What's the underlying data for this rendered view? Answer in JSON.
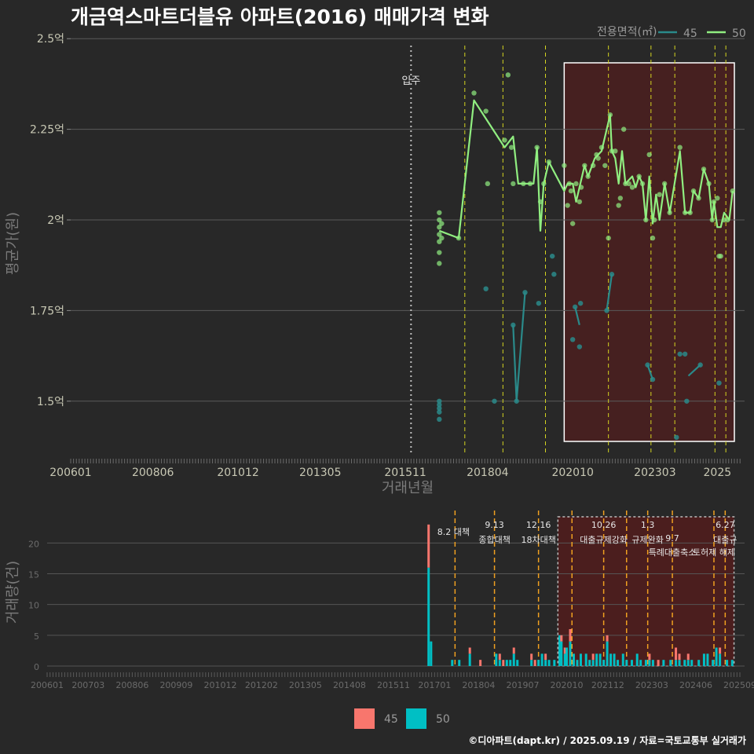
{
  "title": "개금역스마트더블유 아파트(2016) 매매가격 변화",
  "footer": "©디아파트(dapt.kr) / 2025.09.19 / 자료=국토교통부 실거래가",
  "colors": {
    "s45_line": "#2a8a8a",
    "s50_line": "#90ee80",
    "bar45": "#f8766d",
    "bar50": "#00bfc4",
    "accent_dash": "#e8c020",
    "highlight": "#5a1a1a"
  },
  "chart_data": [
    {
      "type": "line",
      "name": "price",
      "xlabel": "거래년월",
      "ylabel": "평균가(원)",
      "legend_title": "전용면적(㎡)",
      "legend_position": "top-right",
      "x_ticks": [
        "200601",
        "200806",
        "201012",
        "201305",
        "201511",
        "201804",
        "202010",
        "202303",
        "2025"
      ],
      "y_ticks": [
        {
          "v": 1.5,
          "label": "1.5억"
        },
        {
          "v": 1.75,
          "label": "1.75억"
        },
        {
          "v": 2.0,
          "label": "2억"
        },
        {
          "v": 2.25,
          "label": "2.25억"
        },
        {
          "v": 2.5,
          "label": "2.5억"
        }
      ],
      "x_range": [
        2006.0,
        2025.8
      ],
      "y_range": [
        1.35,
        2.52
      ],
      "move_in": {
        "x": 2016.0,
        "label": "입주"
      },
      "policy_lines": [
        2017.58,
        2018.7,
        2019.95,
        2021.8,
        2023.05,
        2023.75,
        2024.93,
        2025.25
      ],
      "highlight": [
        2020.5,
        2025.5
      ],
      "series": [
        {
          "name": "45",
          "points": [
            [
              2016.83,
              1.45
            ],
            [
              2016.83,
              1.47
            ],
            [
              2016.83,
              1.48
            ],
            [
              2016.83,
              1.49
            ],
            [
              2016.83,
              1.5
            ],
            [
              2018.2,
              1.81
            ],
            [
              2018.45,
              1.5
            ],
            [
              2019.0,
              1.71
            ],
            [
              2019.1,
              1.5
            ],
            [
              2019.35,
              1.8
            ],
            [
              2019.75,
              1.77
            ],
            [
              2020.15,
              1.9
            ],
            [
              2020.2,
              1.85
            ],
            [
              2020.75,
              1.67
            ],
            [
              2020.82,
              1.76
            ],
            [
              2020.95,
              1.65
            ],
            [
              2020.98,
              1.77
            ],
            [
              2021.75,
              1.75
            ],
            [
              2021.9,
              1.85
            ],
            [
              2022.95,
              1.6
            ],
            [
              2023.1,
              1.56
            ],
            [
              2023.8,
              1.4
            ],
            [
              2023.9,
              1.63
            ],
            [
              2024.05,
              1.63
            ],
            [
              2024.1,
              1.5
            ],
            [
              2024.5,
              1.6
            ],
            [
              2025.05,
              1.55
            ]
          ],
          "line": [
            [
              2019.0,
              1.71
            ],
            [
              2019.1,
              1.5
            ],
            [
              2019.35,
              1.8
            ],
            [
              null,
              null
            ],
            [
              2020.82,
              1.76
            ],
            [
              2020.95,
              1.71
            ],
            [
              null,
              null
            ],
            [
              2021.75,
              1.75
            ],
            [
              2021.9,
              1.85
            ],
            [
              null,
              null
            ],
            [
              2022.95,
              1.6
            ],
            [
              2023.1,
              1.56
            ],
            [
              null,
              null
            ],
            [
              2024.15,
              1.57
            ],
            [
              2024.5,
              1.6
            ]
          ]
        },
        {
          "name": "50",
          "points": [
            [
              2016.83,
              1.88
            ],
            [
              2016.83,
              1.91
            ],
            [
              2016.83,
              1.94
            ],
            [
              2016.83,
              1.96
            ],
            [
              2016.83,
              1.98
            ],
            [
              2016.83,
              2.0
            ],
            [
              2016.83,
              2.02
            ],
            [
              2016.9,
              1.95
            ],
            [
              2016.9,
              1.99
            ],
            [
              2017.4,
              1.95
            ],
            [
              2017.85,
              2.35
            ],
            [
              2018.2,
              2.3
            ],
            [
              2018.25,
              2.1
            ],
            [
              2018.75,
              2.22
            ],
            [
              2018.85,
              2.4
            ],
            [
              2018.95,
              2.2
            ],
            [
              2019.0,
              2.1
            ],
            [
              2019.3,
              2.1
            ],
            [
              2019.5,
              2.1
            ],
            [
              2019.7,
              2.2
            ],
            [
              2019.8,
              2.05
            ],
            [
              2019.9,
              2.1
            ],
            [
              2020.05,
              2.16
            ],
            [
              2020.5,
              2.15
            ],
            [
              2020.6,
              2.04
            ],
            [
              2020.65,
              2.1
            ],
            [
              2020.7,
              2.08
            ],
            [
              2020.75,
              1.99
            ],
            [
              2020.85,
              2.1
            ],
            [
              2020.95,
              2.05
            ],
            [
              2021.0,
              2.09
            ],
            [
              2021.1,
              2.15
            ],
            [
              2021.2,
              2.12
            ],
            [
              2021.35,
              2.15
            ],
            [
              2021.45,
              2.18
            ],
            [
              2021.5,
              2.17
            ],
            [
              2021.6,
              2.2
            ],
            [
              2021.7,
              2.15
            ],
            [
              2021.8,
              1.95
            ],
            [
              2021.85,
              2.29
            ],
            [
              2021.9,
              2.19
            ],
            [
              2022.0,
              2.19
            ],
            [
              2022.1,
              2.04
            ],
            [
              2022.15,
              2.06
            ],
            [
              2022.25,
              2.25
            ],
            [
              2022.3,
              2.1
            ],
            [
              2022.4,
              2.1
            ],
            [
              2022.5,
              2.09
            ],
            [
              2022.7,
              2.12
            ],
            [
              2022.8,
              2.1
            ],
            [
              2022.9,
              2.0
            ],
            [
              2023.0,
              2.18
            ],
            [
              2023.1,
              1.95
            ],
            [
              2023.15,
              2.0
            ],
            [
              2023.3,
              2.07
            ],
            [
              2023.45,
              2.1
            ],
            [
              2023.6,
              2.02
            ],
            [
              2023.9,
              2.2
            ],
            [
              2024.05,
              2.02
            ],
            [
              2024.2,
              2.02
            ],
            [
              2024.3,
              2.08
            ],
            [
              2024.45,
              2.06
            ],
            [
              2024.6,
              2.14
            ],
            [
              2024.75,
              2.1
            ],
            [
              2024.85,
              2.0
            ],
            [
              2024.9,
              2.05
            ],
            [
              2025.0,
              2.06
            ],
            [
              2025.05,
              1.9
            ],
            [
              2025.1,
              1.9
            ],
            [
              2025.2,
              2.0
            ],
            [
              2025.3,
              2.0
            ],
            [
              2025.45,
              2.08
            ]
          ],
          "line": [
            [
              2016.83,
              1.97
            ],
            [
              2017.4,
              1.95
            ],
            [
              2017.85,
              2.33
            ],
            [
              2018.75,
              2.2
            ],
            [
              2019.0,
              2.23
            ],
            [
              2019.15,
              2.1
            ],
            [
              2019.6,
              2.1
            ],
            [
              2019.7,
              2.2
            ],
            [
              2019.8,
              1.97
            ],
            [
              2019.9,
              2.1
            ],
            [
              2020.05,
              2.16
            ],
            [
              2020.5,
              2.08
            ],
            [
              2020.6,
              2.1
            ],
            [
              2020.75,
              2.1
            ],
            [
              2020.85,
              2.05
            ],
            [
              2020.95,
              2.09
            ],
            [
              2021.1,
              2.15
            ],
            [
              2021.2,
              2.12
            ],
            [
              2021.4,
              2.17
            ],
            [
              2021.6,
              2.19
            ],
            [
              2021.85,
              2.29
            ],
            [
              2021.9,
              2.19
            ],
            [
              2022.0,
              2.17
            ],
            [
              2022.1,
              2.1
            ],
            [
              2022.2,
              2.19
            ],
            [
              2022.3,
              2.1
            ],
            [
              2022.5,
              2.12
            ],
            [
              2022.6,
              2.09
            ],
            [
              2022.7,
              2.12
            ],
            [
              2022.8,
              2.1
            ],
            [
              2022.9,
              2.0
            ],
            [
              2023.0,
              2.12
            ],
            [
              2023.1,
              1.99
            ],
            [
              2023.2,
              2.07
            ],
            [
              2023.3,
              2.0
            ],
            [
              2023.45,
              2.1
            ],
            [
              2023.6,
              2.02
            ],
            [
              2023.9,
              2.19
            ],
            [
              2024.05,
              2.02
            ],
            [
              2024.2,
              2.02
            ],
            [
              2024.3,
              2.08
            ],
            [
              2024.45,
              2.06
            ],
            [
              2024.6,
              2.14
            ],
            [
              2024.75,
              2.1
            ],
            [
              2024.85,
              2.0
            ],
            [
              2024.9,
              2.05
            ],
            [
              2025.0,
              1.98
            ],
            [
              2025.1,
              1.98
            ],
            [
              2025.2,
              2.02
            ],
            [
              2025.35,
              2.0
            ],
            [
              2025.45,
              2.08
            ]
          ]
        }
      ]
    },
    {
      "type": "bar",
      "name": "volume",
      "ylabel": "거래량(건)",
      "x_ticks": [
        "200601",
        "200703",
        "200806",
        "200909",
        "201012",
        "201202",
        "201305",
        "201408",
        "201511",
        "201701",
        "201804",
        "201907",
        "202010",
        "202112",
        "202303",
        "202406",
        "202509"
      ],
      "y_ticks": [
        0,
        5,
        10,
        15,
        20
      ],
      "x_range": [
        2006.0,
        2025.8
      ],
      "y_range": [
        0,
        24
      ],
      "policy_lines": [
        2017.58,
        2018.7,
        2019.95,
        2020.9,
        2021.8,
        2022.45,
        2023.05,
        2023.75,
        2024.93,
        2025.25
      ],
      "policy_labels": [
        {
          "x": 2017.58,
          "date": "8.2",
          "name": "대책",
          "row": "inline"
        },
        {
          "x": 2018.7,
          "date": "9.13",
          "name": "종합대책",
          "row": "two"
        },
        {
          "x": 2019.95,
          "date": "12.16",
          "name": "18차대책",
          "row": "two"
        },
        {
          "x": 2021.8,
          "date": "10.26",
          "name": "대출규제강화",
          "row": "two"
        },
        {
          "x": 2023.05,
          "date": "1.3",
          "name": "규제완화",
          "row": "two"
        },
        {
          "x": 2023.75,
          "date": "9.7",
          "name": "특례대출축소",
          "row": "low"
        },
        {
          "x": 2024.93,
          "date": "",
          "name": "토허제 해제",
          "row": "low"
        },
        {
          "x": 2025.25,
          "date": "6.27",
          "name": "대출규",
          "row": "two"
        }
      ],
      "highlight": [
        2020.5,
        2025.5
      ],
      "legend": [
        "45",
        "50"
      ],
      "bars": [
        [
          2016.83,
          7,
          16
        ],
        [
          2016.9,
          0,
          4
        ],
        [
          2017.5,
          0,
          1
        ],
        [
          2017.7,
          0,
          1
        ],
        [
          2018.0,
          1,
          2
        ],
        [
          2018.3,
          1,
          0
        ],
        [
          2018.75,
          0,
          2
        ],
        [
          2018.85,
          1,
          1
        ],
        [
          2018.95,
          1,
          0
        ],
        [
          2019.05,
          0,
          1
        ],
        [
          2019.15,
          0,
          1
        ],
        [
          2019.25,
          1,
          2
        ],
        [
          2019.35,
          0,
          1
        ],
        [
          2019.75,
          1,
          1
        ],
        [
          2019.85,
          1,
          0
        ],
        [
          2019.95,
          0,
          1
        ],
        [
          2020.05,
          0,
          2
        ],
        [
          2020.15,
          1,
          1
        ],
        [
          2020.25,
          0,
          1
        ],
        [
          2020.4,
          0,
          1
        ],
        [
          2020.55,
          0,
          5
        ],
        [
          2020.6,
          1,
          4
        ],
        [
          2020.7,
          1,
          2
        ],
        [
          2020.75,
          0,
          3
        ],
        [
          2020.85,
          2,
          4
        ],
        [
          2020.95,
          0,
          2
        ],
        [
          2021.05,
          0,
          1
        ],
        [
          2021.15,
          0,
          2
        ],
        [
          2021.3,
          0,
          2
        ],
        [
          2021.4,
          0,
          1
        ],
        [
          2021.5,
          1,
          1
        ],
        [
          2021.6,
          0,
          2
        ],
        [
          2021.7,
          0,
          2
        ],
        [
          2021.8,
          0,
          1
        ],
        [
          2021.9,
          1,
          4
        ],
        [
          2022.0,
          0,
          2
        ],
        [
          2022.1,
          0,
          2
        ],
        [
          2022.2,
          0,
          1
        ],
        [
          2022.35,
          0,
          2
        ],
        [
          2022.45,
          0,
          1
        ],
        [
          2022.6,
          0,
          1
        ],
        [
          2022.75,
          0,
          2
        ],
        [
          2022.85,
          0,
          1
        ],
        [
          2023.0,
          0,
          1
        ],
        [
          2023.1,
          1,
          1
        ],
        [
          2023.2,
          0,
          1
        ],
        [
          2023.35,
          1,
          0
        ],
        [
          2023.5,
          0,
          1
        ],
        [
          2023.7,
          0,
          1
        ],
        [
          2023.85,
          2,
          1
        ],
        [
          2023.95,
          1,
          1
        ],
        [
          2024.1,
          0,
          1
        ],
        [
          2024.2,
          1,
          1
        ],
        [
          2024.3,
          0,
          1
        ],
        [
          2024.5,
          0,
          1
        ],
        [
          2024.65,
          0,
          2
        ],
        [
          2024.75,
          0,
          2
        ],
        [
          2024.9,
          0,
          1
        ],
        [
          2025.0,
          0,
          3
        ],
        [
          2025.1,
          1,
          2
        ],
        [
          2025.3,
          0,
          1
        ],
        [
          2025.45,
          0,
          1
        ]
      ]
    }
  ]
}
